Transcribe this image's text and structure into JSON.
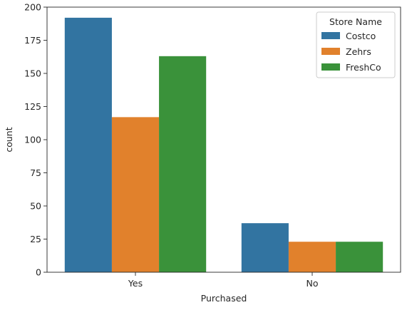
{
  "chart_data": {
    "type": "bar",
    "categories": [
      "Yes",
      "No"
    ],
    "series": [
      {
        "name": "Costco",
        "color": "#3274a1",
        "values": [
          192,
          37
        ]
      },
      {
        "name": "Zehrs",
        "color": "#e1812c",
        "values": [
          117,
          23
        ]
      },
      {
        "name": "FreshCo",
        "color": "#3a923a",
        "values": [
          163,
          23
        ]
      }
    ],
    "xlabel": "Purchased",
    "ylabel": "count",
    "ylim": [
      0,
      200
    ],
    "yticks": [
      0,
      25,
      50,
      75,
      100,
      125,
      150,
      175,
      200
    ],
    "grid": false,
    "legend": {
      "title": "Store Name",
      "placement": "top-right"
    }
  }
}
